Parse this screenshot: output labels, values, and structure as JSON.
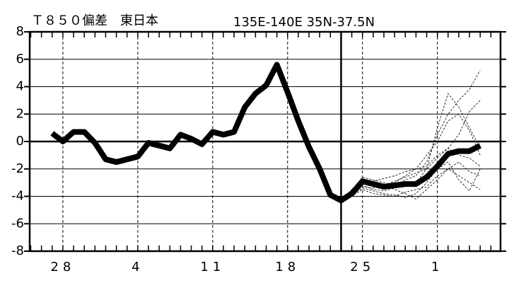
{
  "chart_data": {
    "type": "line",
    "title": "Ｔ８５０偏差　東日本",
    "subtitle": "135E-140E  35N-37.5N",
    "x": [
      -1,
      0,
      1,
      2,
      3,
      4,
      5,
      6,
      7,
      8,
      9,
      10,
      11,
      12,
      13,
      14,
      15,
      16,
      17,
      18,
      19,
      20,
      21,
      22,
      23,
      24,
      25,
      26,
      27,
      28,
      29,
      30,
      31,
      32,
      33,
      34,
      35,
      36,
      37,
      38,
      39
    ],
    "values": [
      0.6,
      0.0,
      0.7,
      0.7,
      -0.1,
      -1.3,
      -1.5,
      -1.3,
      -1.1,
      -0.1,
      -0.3,
      -0.5,
      0.5,
      0.2,
      -0.2,
      0.7,
      0.5,
      0.7,
      2.5,
      3.5,
      4.1,
      5.6,
      3.6,
      1.5,
      -0.4,
      -2.0,
      -3.9,
      -4.3,
      -3.8,
      -2.9,
      -3.1,
      -3.3,
      -3.2,
      -3.1,
      -3.1,
      -2.6,
      -1.8,
      -0.9,
      -0.7,
      -0.7,
      -0.3
    ],
    "color": "#000000",
    "member_x": [
      26,
      27,
      28,
      29,
      30,
      31,
      32,
      33,
      34,
      35,
      36,
      37,
      38,
      39
    ],
    "members": [
      {
        "values": [
          -4.3,
          -3.6,
          -2.6,
          -2.8,
          -3.0,
          -3.2,
          -2.8,
          -2.5,
          -1.5,
          0.5,
          2.0,
          3.0,
          3.8,
          5.2
        ]
      },
      {
        "values": [
          -4.3,
          -3.9,
          -3.2,
          -3.5,
          -3.6,
          -3.4,
          -3.3,
          -3.0,
          -2.0,
          1.0,
          3.5,
          2.5,
          1.0,
          -0.5
        ]
      },
      {
        "values": [
          -4.3,
          -4.0,
          -3.5,
          -3.8,
          -3.9,
          -4.0,
          -3.7,
          -3.5,
          -3.3,
          -2.5,
          -2.0,
          -2.5,
          -3.0,
          -3.5
        ]
      },
      {
        "values": [
          -4.3,
          -3.7,
          -3.0,
          -3.2,
          -3.3,
          -3.0,
          -2.5,
          -2.0,
          -1.0,
          0.0,
          1.5,
          2.0,
          0.8,
          -1.0
        ]
      },
      {
        "values": [
          -4.3,
          -3.8,
          -3.3,
          -3.4,
          -3.1,
          -3.5,
          -3.8,
          -4.2,
          -3.5,
          -2.8,
          -2.0,
          -1.5,
          -2.2,
          -2.5
        ]
      },
      {
        "values": [
          -4.3,
          -3.5,
          -2.8,
          -2.9,
          -2.7,
          -2.5,
          -2.2,
          -2.0,
          -1.8,
          -1.0,
          -0.5,
          0.5,
          2.2,
          3.0
        ]
      },
      {
        "values": [
          -4.3,
          -3.9,
          -3.4,
          -3.6,
          -3.8,
          -3.9,
          -4.1,
          -3.8,
          -3.0,
          -2.0,
          -1.5,
          -2.8,
          -3.6,
          -2.0
        ]
      },
      {
        "values": [
          -4.3,
          -3.6,
          -3.1,
          -3.0,
          -3.2,
          -2.9,
          -2.6,
          -2.3,
          -2.0,
          -1.2,
          -0.5,
          -1.0,
          -1.2,
          -1.8
        ]
      }
    ],
    "member_color": "#000000",
    "vline": 26,
    "xlim": [
      -3.1,
      40.9
    ],
    "xticks": [
      {
        "value": 0,
        "label": "28"
      },
      {
        "value": 7,
        "label": "4"
      },
      {
        "value": 14,
        "label": "11"
      },
      {
        "value": 21,
        "label": "18"
      },
      {
        "value": 28,
        "label": "25"
      },
      {
        "value": 35,
        "label": "1"
      }
    ],
    "ylim": [
      -8,
      8
    ],
    "yticks": [
      -8,
      -6,
      -4,
      -2,
      0,
      2,
      4,
      6,
      8
    ],
    "grid": true
  }
}
